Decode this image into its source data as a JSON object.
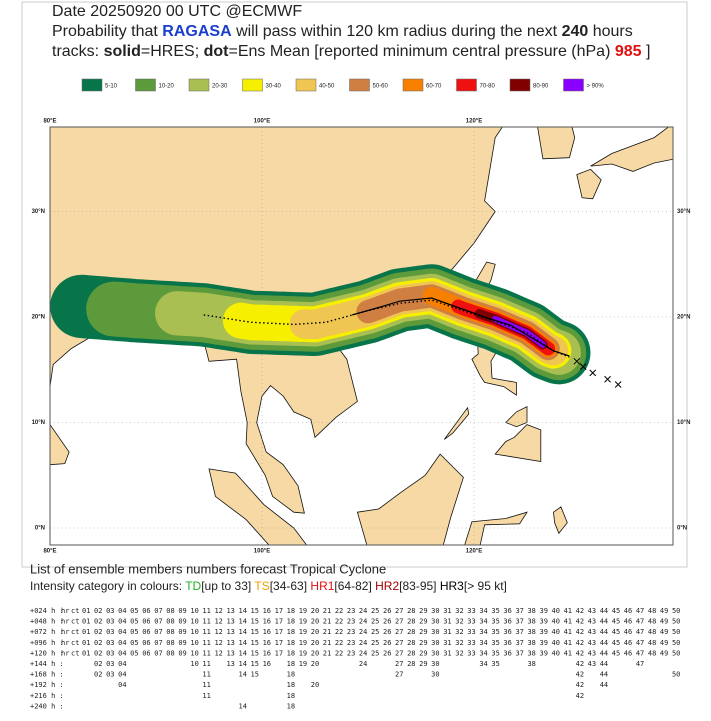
{
  "header": {
    "line1": "Date 20250920 00 UTC   @ECMWF",
    "line2": [
      {
        "text": "Probability that ",
        "color": "#222",
        "bold": false
      },
      {
        "text": "RAGASA",
        "color": "#1a3fd0",
        "bold": true
      },
      {
        "text": " will pass within 120 km radius during the next ",
        "color": "#222",
        "bold": false
      },
      {
        "text": "240",
        "color": "#222",
        "bold": true
      },
      {
        "text": " hours",
        "color": "#222",
        "bold": false
      }
    ],
    "line3": [
      {
        "text": "tracks: ",
        "color": "#222",
        "bold": false
      },
      {
        "text": "solid",
        "color": "#222",
        "bold": true
      },
      {
        "text": "=HRES; ",
        "color": "#222",
        "bold": false
      },
      {
        "text": "dot",
        "color": "#222",
        "bold": true
      },
      {
        "text": "=Ens Mean [reported minimum central pressure (hPa)   ",
        "color": "#222",
        "bold": false
      },
      {
        "text": "985",
        "color": "#e01010",
        "bold": true
      },
      {
        "text": "  ]",
        "color": "#222",
        "bold": false
      }
    ]
  },
  "legend": [
    {
      "label": "5-10",
      "color": "#08744a"
    },
    {
      "label": "10-20",
      "color": "#5c9a3c"
    },
    {
      "label": "20-30",
      "color": "#a9bf52"
    },
    {
      "label": "30-40",
      "color": "#f7ef00"
    },
    {
      "label": "40-50",
      "color": "#efc651"
    },
    {
      "label": "50-60",
      "color": "#d07f42"
    },
    {
      "label": "60-70",
      "color": "#f78000"
    },
    {
      "label": "70-80",
      "color": "#ef1010"
    },
    {
      "label": "80-90",
      "color": "#800000"
    },
    {
      "label": "> 90%",
      "color": "#8a00ff"
    }
  ],
  "map": {
    "lon_labels": [
      "80°E",
      "100°E",
      "120°E"
    ],
    "lat_labels": [
      "30°N",
      "20°N",
      "10°N",
      "0°N"
    ]
  },
  "members": {
    "title": "List of ensemble members numbers forecast Tropical Cyclone",
    "intensity": [
      {
        "text": "Intensity category in colours: ",
        "color": "#222"
      },
      {
        "text": "TD",
        "color": "#22b022"
      },
      {
        "text": "[up to 33] ",
        "color": "#222"
      },
      {
        "text": "TS",
        "color": "#f0a000"
      },
      {
        "text": "[34-63] ",
        "color": "#222"
      },
      {
        "text": "HR1",
        "color": "#e01010"
      },
      {
        "text": "[64-82] ",
        "color": "#222"
      },
      {
        "text": "HR2",
        "color": "#a00000"
      },
      {
        "text": "[83-95] ",
        "color": "#222"
      },
      {
        "text": "HR3",
        "color": "#000"
      },
      {
        "text": "[> 95 kt]",
        "color": "#222"
      }
    ],
    "rows": [
      {
        "label": "+024 h :",
        "color": "#e04020",
        "members": [
          "hr",
          "ct",
          "01",
          "02",
          "03",
          "04",
          "05",
          "06",
          "07",
          "08",
          "09",
          "10",
          "11",
          "12",
          "13",
          "14",
          "15",
          "16",
          "17",
          "18",
          "19",
          "20",
          "21",
          "22",
          "23",
          "24",
          "25",
          "26",
          "27",
          "28",
          "29",
          "30",
          "31",
          "32",
          "33",
          "34",
          "35",
          "36",
          "37",
          "38",
          "39",
          "40",
          "41",
          "42",
          "43",
          "44",
          "45",
          "46",
          "47",
          "48",
          "49",
          "50"
        ]
      },
      {
        "label": "+048 h :",
        "color": "#c02020",
        "members": [
          "hr",
          "ct",
          "01",
          "02",
          "03",
          "04",
          "05",
          "06",
          "07",
          "08",
          "09",
          "10",
          "11",
          "12",
          "13",
          "14",
          "15",
          "16",
          "17",
          "18",
          "19",
          "20",
          "21",
          "22",
          "23",
          "24",
          "25",
          "26",
          "27",
          "28",
          "29",
          "30",
          "31",
          "32",
          "33",
          "34",
          "35",
          "36",
          "37",
          "38",
          "39",
          "40",
          "41",
          "42",
          "43",
          "44",
          "45",
          "46",
          "47",
          "48",
          "49",
          "50"
        ]
      },
      {
        "label": "+072 h :",
        "color": "#b03010",
        "members": [
          "hr",
          "ct",
          "01",
          "02",
          "03",
          "04",
          "05",
          "06",
          "07",
          "08",
          "09",
          "10",
          "11",
          "12",
          "13",
          "14",
          "15",
          "16",
          "17",
          "18",
          "19",
          "20",
          "21",
          "22",
          "23",
          "24",
          "25",
          "26",
          "27",
          "28",
          "29",
          "30",
          "31",
          "32",
          "33",
          "34",
          "35",
          "36",
          "37",
          "38",
          "39",
          "40",
          "41",
          "42",
          "43",
          "44",
          "45",
          "46",
          "47",
          "48",
          "49",
          "50"
        ]
      },
      {
        "label": "+096 h :",
        "color": "#d05010",
        "members": [
          "hr",
          "ct",
          "01",
          "02",
          "03",
          "04",
          "05",
          "06",
          "07",
          "08",
          "09",
          "10",
          "11",
          "12",
          "13",
          "14",
          "15",
          "16",
          "17",
          "18",
          "19",
          "20",
          "21",
          "22",
          "23",
          "24",
          "25",
          "26",
          "27",
          "28",
          "29",
          "30",
          "31",
          "32",
          "33",
          "34",
          "35",
          "36",
          "37",
          "38",
          "39",
          "40",
          "41",
          "42",
          "43",
          "44",
          "45",
          "46",
          "47",
          "48",
          "49",
          "50"
        ]
      },
      {
        "label": "+120 h :",
        "color": "#50a030",
        "members": [
          "hr",
          "ct",
          "01",
          "02",
          "03",
          "04",
          "05",
          "06",
          "07",
          "08",
          "09",
          "10",
          "11",
          "12",
          "13",
          "14",
          "15",
          "16",
          "17",
          "18",
          "19",
          "20",
          "21",
          "22",
          "23",
          "24",
          "25",
          "26",
          "27",
          "28",
          "29",
          "30",
          "31",
          "32",
          "33",
          "34",
          "35",
          "36",
          "37",
          "38",
          "39",
          "40",
          "41",
          "42",
          "43",
          "44",
          "45",
          "46",
          "47",
          "48",
          "49",
          "50"
        ]
      },
      {
        "label": "+144 h :",
        "color": "#30b030",
        "members": [
          "02",
          "03",
          "04",
          "10",
          "11",
          "13",
          "14",
          "15",
          "16",
          "18",
          "19",
          "20",
          "24",
          "27",
          "28",
          "29",
          "30",
          "34",
          "35",
          "38",
          "42",
          "43",
          "44",
          "47"
        ]
      },
      {
        "label": "+168 h :",
        "color": "#30b030",
        "members": [
          "02",
          "03",
          "04",
          "11",
          "14",
          "15",
          "18",
          "27",
          "30",
          "42",
          "44",
          "50"
        ]
      },
      {
        "label": "+192 h :",
        "color": "#30b030",
        "members": [
          "04",
          "11",
          "18",
          "20",
          "42",
          "44"
        ]
      },
      {
        "label": "+216 h :",
        "color": "#30b030",
        "members": [
          "11",
          "18",
          "42"
        ]
      },
      {
        "label": "+240 h :",
        "color": "#30b030",
        "members": [
          "14",
          "18"
        ]
      }
    ]
  }
}
